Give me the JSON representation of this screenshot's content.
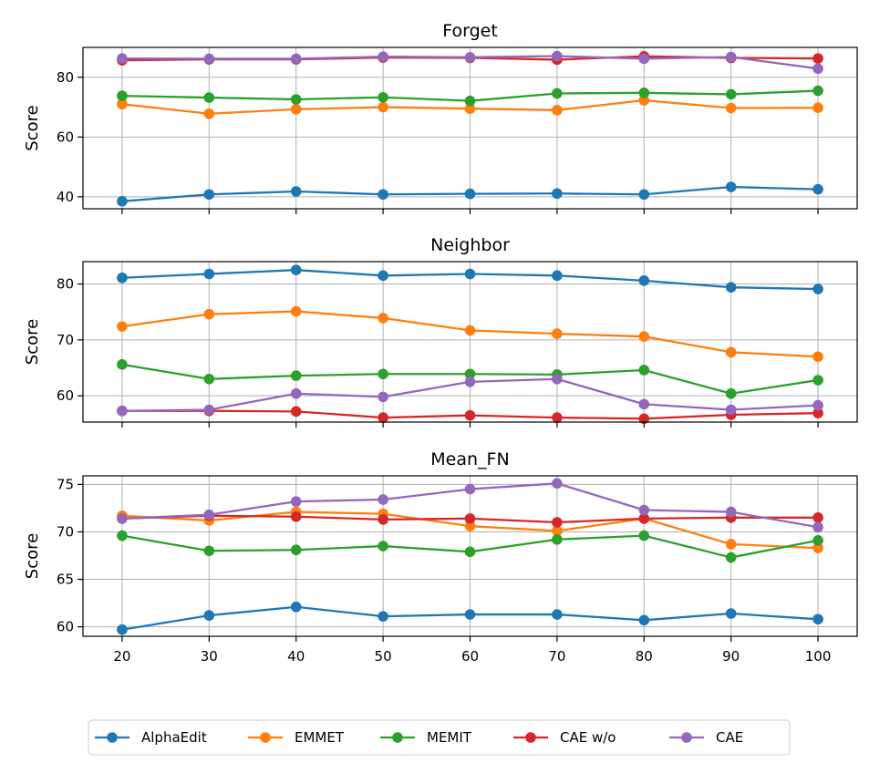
{
  "chart_data": {
    "type": "line",
    "x": [
      20,
      30,
      40,
      50,
      60,
      70,
      80,
      90,
      100
    ],
    "xticks": [
      "20",
      "30",
      "40",
      "50",
      "60",
      "70",
      "80",
      "90",
      "100"
    ],
    "legend_position": "bottom-center",
    "grid": true,
    "legend": [
      {
        "name": "AlphaEdit",
        "color": "#1f77b4"
      },
      {
        "name": "EMMET",
        "color": "#ff7f0e"
      },
      {
        "name": "MEMIT",
        "color": "#2ca02c"
      },
      {
        "name": "CAE w/o",
        "color": "#d62728"
      },
      {
        "name": "CAE",
        "color": "#9467bd"
      }
    ],
    "panels": [
      {
        "title": "Forget",
        "ylabel": "Score",
        "ylim": [
          36,
          90
        ],
        "yticks": [
          40,
          60,
          80
        ],
        "ytick_labels": [
          "40",
          "60",
          "80"
        ],
        "series": [
          {
            "name": "AlphaEdit",
            "values": [
              38.5,
              40.8,
              41.8,
              40.8,
              41.0,
              41.1,
              40.8,
              43.3,
              42.5
            ]
          },
          {
            "name": "EMMET",
            "values": [
              71.0,
              67.8,
              69.3,
              70.0,
              69.5,
              69.0,
              72.3,
              69.7,
              69.8
            ]
          },
          {
            "name": "MEMIT",
            "values": [
              73.8,
              73.2,
              72.6,
              73.3,
              72.1,
              74.6,
              74.8,
              74.3,
              75.5
            ]
          },
          {
            "name": "CAE w/o",
            "values": [
              85.7,
              86.0,
              86.0,
              86.6,
              86.5,
              85.9,
              87.0,
              86.5,
              86.3
            ]
          },
          {
            "name": "CAE",
            "values": [
              86.3,
              86.2,
              86.2,
              86.9,
              86.7,
              87.1,
              86.2,
              86.8,
              82.9
            ]
          }
        ]
      },
      {
        "title": "Neighbor",
        "ylabel": "Score",
        "ylim": [
          55.3,
          84.0
        ],
        "yticks": [
          60,
          70,
          80
        ],
        "ytick_labels": [
          "60",
          "70",
          "80"
        ],
        "series": [
          {
            "name": "AlphaEdit",
            "values": [
              81.1,
              81.8,
              82.5,
              81.5,
              81.8,
              81.5,
              80.6,
              79.4,
              79.1
            ]
          },
          {
            "name": "EMMET",
            "values": [
              72.4,
              74.6,
              75.1,
              73.9,
              71.7,
              71.1,
              70.6,
              67.8,
              67.0
            ]
          },
          {
            "name": "MEMIT",
            "values": [
              65.6,
              63.0,
              63.6,
              63.9,
              63.9,
              63.8,
              64.6,
              60.4,
              62.8
            ]
          },
          {
            "name": "CAE w/o",
            "values": [
              57.3,
              57.3,
              57.2,
              56.1,
              56.5,
              56.1,
              55.9,
              56.6,
              56.9
            ]
          },
          {
            "name": "CAE",
            "values": [
              57.3,
              57.5,
              60.4,
              59.8,
              62.5,
              63.0,
              58.5,
              57.5,
              58.3
            ]
          }
        ]
      },
      {
        "title": "Mean_FN",
        "ylabel": "Score",
        "ylim": [
          59.0,
          75.9
        ],
        "yticks": [
          60,
          65,
          70,
          75
        ],
        "ytick_labels": [
          "60",
          "65",
          "70",
          "75"
        ],
        "series": [
          {
            "name": "AlphaEdit",
            "values": [
              59.7,
              61.2,
              62.1,
              61.1,
              61.3,
              61.3,
              60.7,
              61.4,
              60.8
            ]
          },
          {
            "name": "EMMET",
            "values": [
              71.7,
              71.2,
              72.1,
              71.9,
              70.6,
              70.1,
              71.4,
              68.7,
              68.3
            ]
          },
          {
            "name": "MEMIT",
            "values": [
              69.6,
              68.0,
              68.1,
              68.5,
              67.9,
              69.2,
              69.6,
              67.3,
              69.1
            ]
          },
          {
            "name": "CAE w/o",
            "values": [
              71.4,
              71.7,
              71.6,
              71.3,
              71.4,
              71.0,
              71.4,
              71.5,
              71.5
            ]
          },
          {
            "name": "CAE",
            "values": [
              71.4,
              71.8,
              73.2,
              73.4,
              74.5,
              75.1,
              72.3,
              72.1,
              70.5
            ]
          }
        ]
      }
    ]
  }
}
